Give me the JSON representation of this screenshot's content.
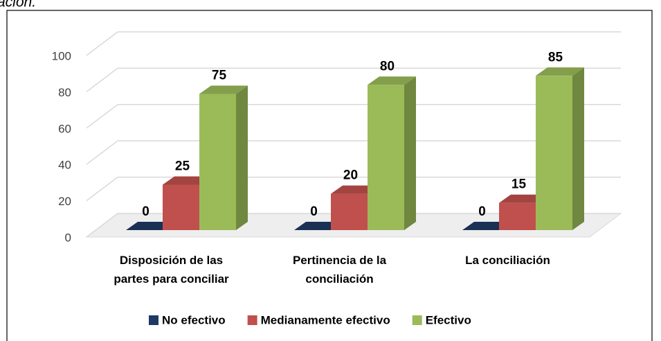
{
  "caption": "ación.",
  "chart_data": {
    "type": "bar3d",
    "categories": [
      "Disposición de las partes para conciliar",
      "Pertinencia de la conciliación",
      "La conciliación"
    ],
    "series": [
      {
        "name": "No efectivo",
        "color": "#1f3864",
        "values": [
          0,
          0,
          0
        ]
      },
      {
        "name": "Medianamente efectivo",
        "color": "#c0504d",
        "values": [
          25,
          20,
          15
        ]
      },
      {
        "name": "Efectivo",
        "color": "#9bbb59",
        "values": [
          75,
          80,
          85
        ]
      }
    ],
    "ylim": [
      0,
      100
    ],
    "yticks": [
      0,
      20,
      40,
      60,
      80,
      100
    ],
    "grid": true,
    "legend": "bottom"
  }
}
